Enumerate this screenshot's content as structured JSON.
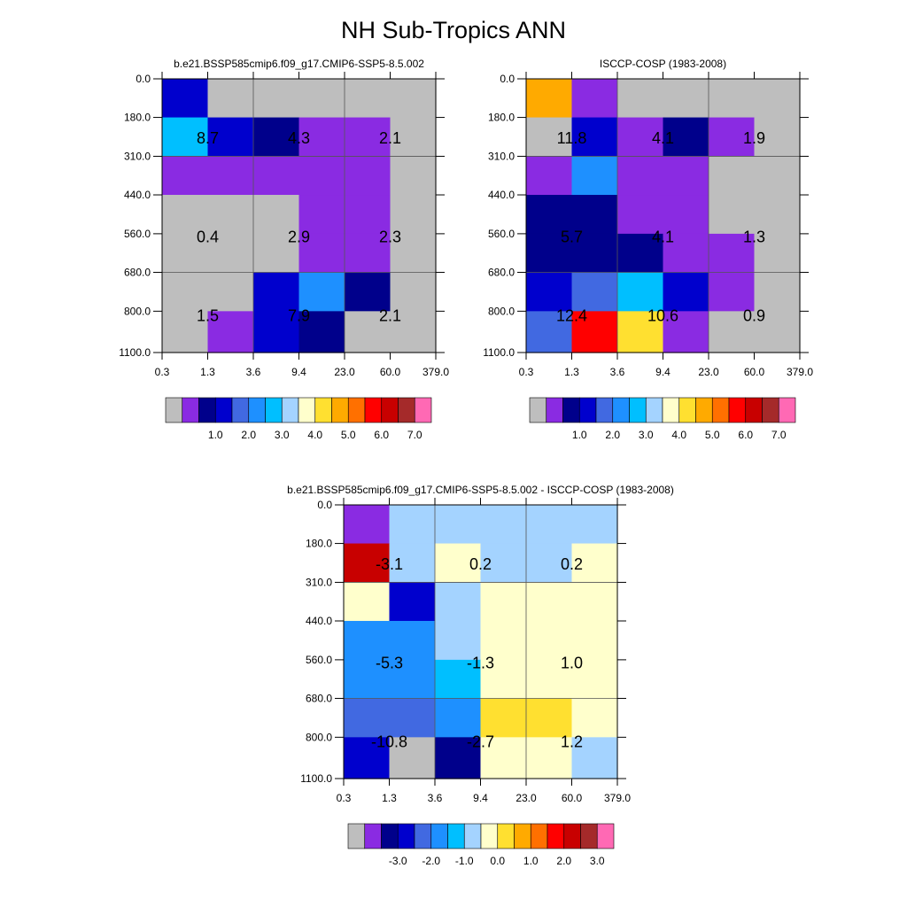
{
  "title": "NH Sub-Tropics ANN",
  "chart_data": [
    {
      "type": "heatmap",
      "title": "b.e21.BSSP585cmip6.f09_g17.CMIP6-SSP5-8.5.002",
      "xlabel": "",
      "ylabel": "",
      "x_ticks": [
        "0.3",
        "1.3",
        "3.6",
        "9.4",
        "23.0",
        "60.0",
        "379.0"
      ],
      "y_ticks": [
        "0.0",
        "180.0",
        "310.0",
        "440.0",
        "560.0",
        "680.0",
        "800.0",
        "1100.0"
      ],
      "cell_colors": [
        [
          "#0000cd",
          "#bebebe",
          "#bebebe",
          "#bebebe",
          "#bebebe",
          "#bebebe"
        ],
        [
          "#00bfff",
          "#0000cd",
          "#00008b",
          "#8a2be2",
          "#8a2be2",
          "#bebebe"
        ],
        [
          "#8a2be2",
          "#8a2be2",
          "#8a2be2",
          "#8a2be2",
          "#8a2be2",
          "#bebebe"
        ],
        [
          "#bebebe",
          "#bebebe",
          "#bebebe",
          "#8a2be2",
          "#8a2be2",
          "#bebebe"
        ],
        [
          "#bebebe",
          "#bebebe",
          "#bebebe",
          "#8a2be2",
          "#8a2be2",
          "#bebebe"
        ],
        [
          "#bebebe",
          "#bebebe",
          "#0000cd",
          "#1e90ff",
          "#00008b",
          "#bebebe"
        ],
        [
          "#bebebe",
          "#8a2be2",
          "#0000cd",
          "#00008b",
          "#bebebe",
          "#bebebe"
        ]
      ],
      "annotations": [
        {
          "x_index": 0,
          "y_index": 0,
          "text": "8.7"
        },
        {
          "x_index": 1,
          "y_index": 0,
          "text": "4.3"
        },
        {
          "x_index": 2,
          "y_index": 0,
          "text": "2.1"
        },
        {
          "x_index": 0,
          "y_index": 1,
          "text": "0.4"
        },
        {
          "x_index": 1,
          "y_index": 1,
          "text": "2.9"
        },
        {
          "x_index": 2,
          "y_index": 1,
          "text": "2.3"
        },
        {
          "x_index": 0,
          "y_index": 2,
          "text": "1.5"
        },
        {
          "x_index": 1,
          "y_index": 2,
          "text": "7.9"
        },
        {
          "x_index": 2,
          "y_index": 2,
          "text": "2.1"
        }
      ],
      "colorbar": {
        "colors": [
          "#bebebe",
          "#8a2be2",
          "#00008b",
          "#0000cd",
          "#4169e1",
          "#1e90ff",
          "#00bfff",
          "#a4d3ff",
          "#ffffcc",
          "#ffe030",
          "#ffaa00",
          "#ff7000",
          "#ff0000",
          "#c80000",
          "#a52a2a",
          "#ff69b4"
        ],
        "labels": [
          "1.0",
          "2.0",
          "3.0",
          "4.0",
          "5.0",
          "6.0",
          "7.0"
        ]
      }
    },
    {
      "type": "heatmap",
      "title": "ISCCP-COSP (1983-2008)",
      "xlabel": "",
      "ylabel": "",
      "x_ticks": [
        "0.3",
        "1.3",
        "3.6",
        "9.4",
        "23.0",
        "60.0",
        "379.0"
      ],
      "y_ticks": [
        "0.0",
        "180.0",
        "310.0",
        "440.0",
        "560.0",
        "680.0",
        "800.0",
        "1100.0"
      ],
      "cell_colors": [
        [
          "#ffaa00",
          "#8a2be2",
          "#bebebe",
          "#bebebe",
          "#bebebe",
          "#bebebe"
        ],
        [
          "#bebebe",
          "#0000cd",
          "#8a2be2",
          "#00008b",
          "#8a2be2",
          "#bebebe"
        ],
        [
          "#8a2be2",
          "#1e90ff",
          "#8a2be2",
          "#8a2be2",
          "#bebebe",
          "#bebebe"
        ],
        [
          "#00008b",
          "#00008b",
          "#8a2be2",
          "#8a2be2",
          "#bebebe",
          "#bebebe"
        ],
        [
          "#00008b",
          "#00008b",
          "#00008b",
          "#8a2be2",
          "#8a2be2",
          "#bebebe"
        ],
        [
          "#0000cd",
          "#4169e1",
          "#00bfff",
          "#0000cd",
          "#8a2be2",
          "#bebebe"
        ],
        [
          "#4169e1",
          "#ff0000",
          "#ffe030",
          "#8a2be2",
          "#bebebe",
          "#bebebe"
        ]
      ],
      "annotations": [
        {
          "x_index": 0,
          "y_index": 0,
          "text": "11.8"
        },
        {
          "x_index": 1,
          "y_index": 0,
          "text": "4.1"
        },
        {
          "x_index": 2,
          "y_index": 0,
          "text": "1.9"
        },
        {
          "x_index": 0,
          "y_index": 1,
          "text": "5.7"
        },
        {
          "x_index": 1,
          "y_index": 1,
          "text": "4.1"
        },
        {
          "x_index": 2,
          "y_index": 1,
          "text": "1.3"
        },
        {
          "x_index": 0,
          "y_index": 2,
          "text": "12.4"
        },
        {
          "x_index": 1,
          "y_index": 2,
          "text": "10.6"
        },
        {
          "x_index": 2,
          "y_index": 2,
          "text": "0.9"
        }
      ],
      "colorbar": {
        "colors": [
          "#bebebe",
          "#8a2be2",
          "#00008b",
          "#0000cd",
          "#4169e1",
          "#1e90ff",
          "#00bfff",
          "#a4d3ff",
          "#ffffcc",
          "#ffe030",
          "#ffaa00",
          "#ff7000",
          "#ff0000",
          "#c80000",
          "#a52a2a",
          "#ff69b4"
        ],
        "labels": [
          "1.0",
          "2.0",
          "3.0",
          "4.0",
          "5.0",
          "6.0",
          "7.0"
        ]
      }
    },
    {
      "type": "heatmap",
      "title": "b.e21.BSSP585cmip6.f09_g17.CMIP6-SSP5-8.5.002 - ISCCP-COSP (1983-2008)",
      "xlabel": "",
      "ylabel": "",
      "x_ticks": [
        "0.3",
        "1.3",
        "3.6",
        "9.4",
        "23.0",
        "60.0",
        "379.0"
      ],
      "y_ticks": [
        "0.0",
        "180.0",
        "310.0",
        "440.0",
        "560.0",
        "680.0",
        "800.0",
        "1100.0"
      ],
      "cell_colors": [
        [
          "#8a2be2",
          "#a4d3ff",
          "#a4d3ff",
          "#a4d3ff",
          "#a4d3ff",
          "#a4d3ff"
        ],
        [
          "#c80000",
          "#a4d3ff",
          "#ffffcc",
          "#a4d3ff",
          "#a4d3ff",
          "#ffffcc"
        ],
        [
          "#ffffcc",
          "#0000cd",
          "#a4d3ff",
          "#ffffcc",
          "#ffffcc",
          "#ffffcc"
        ],
        [
          "#1e90ff",
          "#1e90ff",
          "#a4d3ff",
          "#ffffcc",
          "#ffffcc",
          "#ffffcc"
        ],
        [
          "#1e90ff",
          "#1e90ff",
          "#00bfff",
          "#ffffcc",
          "#ffffcc",
          "#ffffcc"
        ],
        [
          "#4169e1",
          "#4169e1",
          "#1e90ff",
          "#ffe030",
          "#ffe030",
          "#ffffcc"
        ],
        [
          "#0000cd",
          "#bebebe",
          "#00008b",
          "#ffffcc",
          "#ffffcc",
          "#a4d3ff"
        ]
      ],
      "annotations": [
        {
          "x_index": 0,
          "y_index": 0,
          "text": "-3.1"
        },
        {
          "x_index": 1,
          "y_index": 0,
          "text": "0.2"
        },
        {
          "x_index": 2,
          "y_index": 0,
          "text": "0.2"
        },
        {
          "x_index": 0,
          "y_index": 1,
          "text": "-5.3"
        },
        {
          "x_index": 1,
          "y_index": 1,
          "text": "-1.3"
        },
        {
          "x_index": 2,
          "y_index": 1,
          "text": "1.0"
        },
        {
          "x_index": 0,
          "y_index": 2,
          "text": "-10.8"
        },
        {
          "x_index": 1,
          "y_index": 2,
          "text": "-2.7"
        },
        {
          "x_index": 2,
          "y_index": 2,
          "text": "1.2"
        }
      ],
      "colorbar": {
        "colors": [
          "#bebebe",
          "#8a2be2",
          "#00008b",
          "#0000cd",
          "#4169e1",
          "#1e90ff",
          "#00bfff",
          "#a4d3ff",
          "#ffffcc",
          "#ffe030",
          "#ffaa00",
          "#ff7000",
          "#ff0000",
          "#c80000",
          "#a52a2a",
          "#ff69b4"
        ],
        "labels": [
          "-3.0",
          "-2.0",
          "-1.0",
          "0.0",
          "1.0",
          "2.0",
          "3.0"
        ]
      }
    }
  ]
}
